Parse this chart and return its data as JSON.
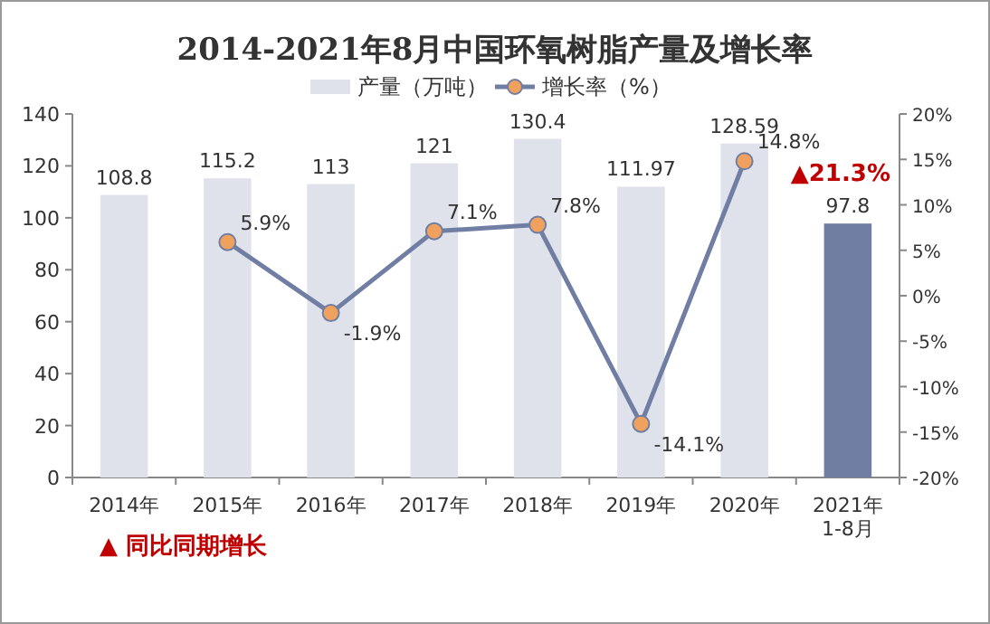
{
  "chart_data": {
    "type": "bar",
    "title": "2014-2021年8月中国环氧树脂产量及增长率",
    "categories": [
      "2014年",
      "2015年",
      "2016年",
      "2017年",
      "2018年",
      "2019年",
      "2020年",
      "2021年\n1-8月"
    ],
    "series": [
      {
        "name": "产量（万吨）",
        "color": "#dfe2ea",
        "colors": [
          "#dfe2ea",
          "#dfe2ea",
          "#dfe2ea",
          "#dfe2ea",
          "#dfe2ea",
          "#dfe2ea",
          "#dfe2ea",
          "#717ea3"
        ],
        "values": [
          108.8,
          115.2,
          113,
          121,
          130.4,
          111.97,
          128.59,
          97.8
        ]
      },
      {
        "name": "增长率（%）",
        "type": "line",
        "axis": "y2",
        "color": "#717ea3",
        "values": [
          null,
          5.9,
          -1.9,
          7.1,
          7.8,
          -14.1,
          14.8,
          null
        ],
        "value_labels": [
          null,
          "5.9%",
          "-1.9%",
          "7.1%",
          "7.8%",
          "-14.1%",
          "14.8%",
          null
        ]
      }
    ],
    "data_labels": true,
    "marker": "circle",
    "legend": "top",
    "grid": false,
    "ylim": [
      0,
      140
    ],
    "yticks": [
      0,
      20,
      40,
      60,
      80,
      100,
      120,
      140
    ],
    "y2lim": [
      -20,
      20
    ],
    "y2ticks": [
      {
        "value": -20,
        "label": "-20%"
      },
      {
        "value": -15,
        "label": "-15%"
      },
      {
        "value": -10,
        "label": "-10%"
      },
      {
        "value": -5,
        "label": "-5%"
      },
      {
        "value": 0,
        "label": "0%"
      },
      {
        "value": 5,
        "label": "5%"
      },
      {
        "value": 10,
        "label": "10%"
      },
      {
        "value": 15,
        "label": "15%"
      },
      {
        "value": 20,
        "label": "20%"
      }
    ],
    "annotations": [
      "▲21.3%",
      "▲ 同比同期增长"
    ]
  }
}
